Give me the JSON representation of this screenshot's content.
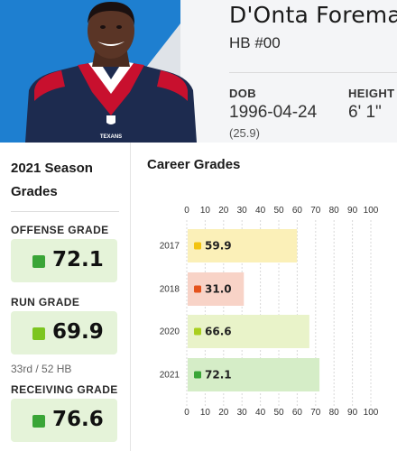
{
  "player": {
    "name": "D'Onta Foreman",
    "position": "HB #00",
    "dob_label": "DOB",
    "dob_value": "1996-04-24",
    "age": "(25.9)",
    "height_label": "HEIGHT",
    "height_value": "6' 1\"",
    "jersey_text": "TEXANS"
  },
  "season": {
    "title": "2021 Season Grades",
    "grades": [
      {
        "label": "OFFENSE GRADE",
        "value": "72.1",
        "color": "#3aa537"
      },
      {
        "label": "RUN GRADE",
        "value": "69.9",
        "color": "#7cc520",
        "rank": "33rd / 52 HB"
      },
      {
        "label": "RECEIVING GRADE",
        "value": "76.6",
        "color": "#3aa537"
      }
    ]
  },
  "career": {
    "title": "Career Grades"
  },
  "chart_data": {
    "type": "bar",
    "orientation": "horizontal",
    "title": "Career Grades",
    "categories": [
      "2017",
      "2018",
      "2020",
      "2021"
    ],
    "values": [
      59.9,
      31.0,
      66.6,
      72.1
    ],
    "value_labels": [
      "59.9",
      "31.0",
      "66.6",
      "72.1"
    ],
    "bar_colors": [
      "#fbf0b8",
      "#f8d3c7",
      "#e9f3c9",
      "#d5edc7"
    ],
    "dot_colors": [
      "#f2c311",
      "#e4531d",
      "#a9cf1e",
      "#3aa537"
    ],
    "xlim": [
      0,
      100
    ],
    "ticks": [
      "0",
      "10",
      "20",
      "30",
      "40",
      "50",
      "60",
      "70",
      "80",
      "90",
      "100"
    ],
    "grid": true
  }
}
